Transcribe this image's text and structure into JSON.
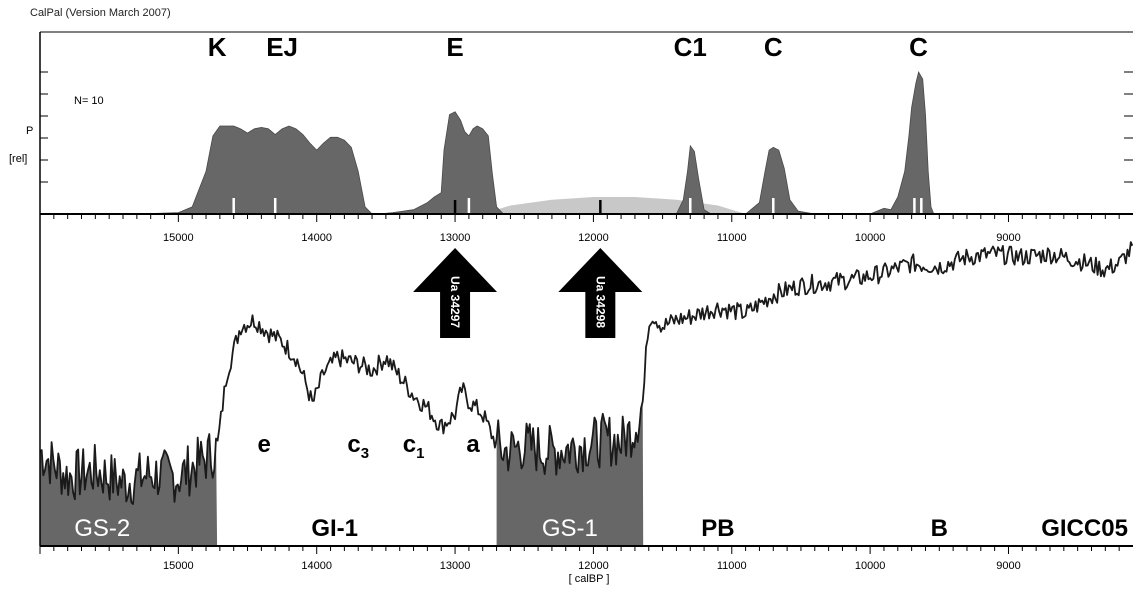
{
  "header": {
    "version_label": "CalPal (Version March 2007)"
  },
  "chart_data": {
    "type": "area",
    "xlabel": "[ calBP ]",
    "x_axis_reversed": true,
    "xlim": [
      16000,
      8100
    ],
    "xticks": [
      15000,
      14000,
      13000,
      12000,
      11000,
      10000,
      9000
    ],
    "probability_panel": {
      "ylabel_top": "P",
      "ylabel_bottom": "[rel]",
      "n_label": "N= 10",
      "peak_labels": [
        {
          "text": "K",
          "x": 14720
        },
        {
          "text": "EJ",
          "x": 14250
        },
        {
          "text": "E",
          "x": 13000
        },
        {
          "text": "C1",
          "x": 11300
        },
        {
          "text": "C",
          "x": 10700
        },
        {
          "text": "C",
          "x": 9650
        }
      ],
      "dark_distribution": [
        [
          15300,
          0
        ],
        [
          15000,
          0.01
        ],
        [
          14900,
          0.05
        ],
        [
          14800,
          0.3
        ],
        [
          14750,
          0.55
        ],
        [
          14700,
          0.62
        ],
        [
          14600,
          0.62
        ],
        [
          14550,
          0.6
        ],
        [
          14500,
          0.57
        ],
        [
          14450,
          0.6
        ],
        [
          14400,
          0.61
        ],
        [
          14350,
          0.6
        ],
        [
          14300,
          0.56
        ],
        [
          14250,
          0.6
        ],
        [
          14200,
          0.62
        ],
        [
          14150,
          0.6
        ],
        [
          14100,
          0.56
        ],
        [
          14050,
          0.5
        ],
        [
          14000,
          0.45
        ],
        [
          13950,
          0.5
        ],
        [
          13900,
          0.54
        ],
        [
          13850,
          0.54
        ],
        [
          13800,
          0.52
        ],
        [
          13750,
          0.47
        ],
        [
          13700,
          0.3
        ],
        [
          13650,
          0.05
        ],
        [
          13600,
          0
        ],
        [
          13550,
          0
        ],
        [
          13450,
          0.01
        ],
        [
          13300,
          0.03
        ],
        [
          13200,
          0.08
        ],
        [
          13150,
          0.12
        ],
        [
          13100,
          0.15
        ],
        [
          13080,
          0.45
        ],
        [
          13040,
          0.7
        ],
        [
          13000,
          0.72
        ],
        [
          12960,
          0.66
        ],
        [
          12930,
          0.58
        ],
        [
          12900,
          0.55
        ],
        [
          12870,
          0.6
        ],
        [
          12840,
          0.62
        ],
        [
          12800,
          0.6
        ],
        [
          12760,
          0.55
        ],
        [
          12730,
          0.28
        ],
        [
          12700,
          0.05
        ],
        [
          12650,
          0
        ],
        [
          11400,
          0
        ],
        [
          11350,
          0.1
        ],
        [
          11320,
          0.3
        ],
        [
          11300,
          0.48
        ],
        [
          11270,
          0.44
        ],
        [
          11240,
          0.25
        ],
        [
          11200,
          0.03
        ],
        [
          11150,
          0
        ],
        [
          10900,
          0
        ],
        [
          10800,
          0.08
        ],
        [
          10760,
          0.3
        ],
        [
          10730,
          0.45
        ],
        [
          10700,
          0.47
        ],
        [
          10660,
          0.45
        ],
        [
          10620,
          0.32
        ],
        [
          10580,
          0.1
        ],
        [
          10520,
          0.02
        ],
        [
          10400,
          0
        ],
        [
          10000,
          0
        ],
        [
          9900,
          0.04
        ],
        [
          9850,
          0.03
        ],
        [
          9800,
          0.12
        ],
        [
          9750,
          0.3
        ],
        [
          9720,
          0.55
        ],
        [
          9700,
          0.75
        ],
        [
          9670,
          0.92
        ],
        [
          9650,
          1.0
        ],
        [
          9620,
          0.95
        ],
        [
          9600,
          0.7
        ],
        [
          9580,
          0.3
        ],
        [
          9560,
          0.05
        ],
        [
          9540,
          0
        ]
      ],
      "light_distribution": [
        [
          12800,
          0
        ],
        [
          12600,
          0.06
        ],
        [
          12300,
          0.1
        ],
        [
          12000,
          0.12
        ],
        [
          11700,
          0.12
        ],
        [
          11400,
          0.1
        ],
        [
          11100,
          0.06
        ],
        [
          10900,
          0
        ],
        [
          10800,
          0
        ]
      ],
      "dark_markers": [
        13000,
        11950
      ],
      "white_markers": [
        14600,
        14300,
        12900,
        11300,
        10700,
        9680,
        9630
      ]
    },
    "climate_panel": {
      "arrows": [
        {
          "label": "Ua 34297",
          "x": 13000
        },
        {
          "label": "Ua 34298",
          "x": 11950
        }
      ],
      "curve_anchors": [
        [
          16000,
          0.3
        ],
        [
          15800,
          0.22
        ],
        [
          15600,
          0.24
        ],
        [
          15400,
          0.2
        ],
        [
          15200,
          0.23
        ],
        [
          15000,
          0.22
        ],
        [
          14800,
          0.28
        ],
        [
          14720,
          0.31
        ],
        [
          14650,
          0.55
        ],
        [
          14550,
          0.7
        ],
        [
          14450,
          0.72
        ],
        [
          14350,
          0.68
        ],
        [
          14250,
          0.65
        ],
        [
          14150,
          0.6
        ],
        [
          14080,
          0.52
        ],
        [
          14030,
          0.45
        ],
        [
          13950,
          0.55
        ],
        [
          13850,
          0.6
        ],
        [
          13700,
          0.58
        ],
        [
          13600,
          0.56
        ],
        [
          13500,
          0.6
        ],
        [
          13400,
          0.54
        ],
        [
          13300,
          0.48
        ],
        [
          13200,
          0.44
        ],
        [
          13100,
          0.38
        ],
        [
          13000,
          0.42
        ],
        [
          12950,
          0.5
        ],
        [
          12900,
          0.46
        ],
        [
          12800,
          0.42
        ],
        [
          12720,
          0.34
        ],
        [
          12650,
          0.3
        ],
        [
          12500,
          0.32
        ],
        [
          12300,
          0.3
        ],
        [
          12100,
          0.32
        ],
        [
          11900,
          0.34
        ],
        [
          11800,
          0.33
        ],
        [
          11700,
          0.38
        ],
        [
          11640,
          0.46
        ],
        [
          11610,
          0.68
        ],
        [
          11580,
          0.74
        ],
        [
          11500,
          0.7
        ],
        [
          11400,
          0.72
        ],
        [
          11300,
          0.73
        ],
        [
          11100,
          0.76
        ],
        [
          10900,
          0.74
        ],
        [
          10700,
          0.8
        ],
        [
          10500,
          0.83
        ],
        [
          10300,
          0.84
        ],
        [
          10100,
          0.85
        ],
        [
          9900,
          0.87
        ],
        [
          9700,
          0.9
        ],
        [
          9500,
          0.89
        ],
        [
          9300,
          0.92
        ],
        [
          9100,
          0.93
        ],
        [
          8900,
          0.92
        ],
        [
          8700,
          0.93
        ],
        [
          8500,
          0.91
        ],
        [
          8300,
          0.88
        ],
        [
          8200,
          0.9
        ],
        [
          8100,
          0.95
        ]
      ],
      "shaded_stadials": [
        [
          16000,
          14720
        ],
        [
          12700,
          11640
        ]
      ],
      "sub_labels": [
        {
          "text": "e",
          "sub": "",
          "x": 14380
        },
        {
          "text": "c",
          "sub": "3",
          "x": 13700
        },
        {
          "text": "c",
          "sub": "1",
          "x": 13300
        },
        {
          "text": "a",
          "sub": "",
          "x": 12870
        }
      ],
      "phase_labels": [
        {
          "text": "GS-2",
          "x": 15550,
          "style": "gs"
        },
        {
          "text": "GI-1",
          "x": 13870,
          "style": "phase"
        },
        {
          "text": "GS-1",
          "x": 12170,
          "style": "gs"
        },
        {
          "text": "PB",
          "x": 11100,
          "style": "phase"
        },
        {
          "text": "B",
          "x": 9500,
          "style": "phase"
        },
        {
          "text": "GICC05",
          "x": 8450,
          "style": "phase"
        }
      ]
    }
  }
}
